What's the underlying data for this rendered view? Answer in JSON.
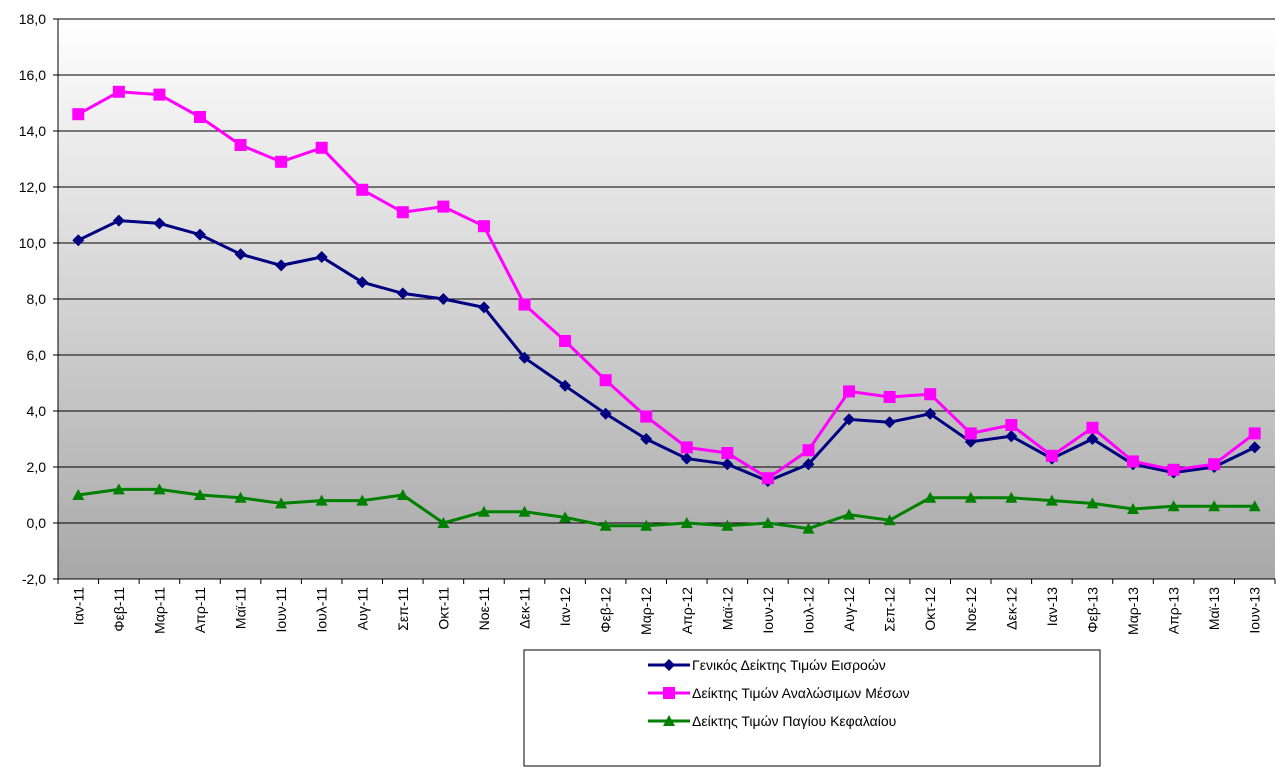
{
  "chart_data": {
    "type": "line",
    "categories": [
      "Ιαν-11",
      "Φεβ-11",
      "Μαρ-11",
      "Απρ-11",
      "Μαϊ-11",
      "Ιουν-11",
      "Ιουλ-11",
      "Αυγ-11",
      "Σεπ-11",
      "Οκτ-11",
      "Νοε-11",
      "Δεκ-11",
      "Ιαν-12",
      "Φεβ-12",
      "Μαρ-12",
      "Απρ-12",
      "Μαϊ-12",
      "Ιουν-12",
      "Ιουλ-12",
      "Αυγ-12",
      "Σεπ-12",
      "Οκτ-12",
      "Νοε-12",
      "Δεκ-12",
      "Ιαν-13",
      "Φεβ-13",
      "Μαρ-13",
      "Απρ-13",
      "Μαϊ-13",
      "Ιουν-13"
    ],
    "series": [
      {
        "name": "Γενικός Δείκτης Τιμών Εισροών",
        "color": "#000080",
        "marker": "diamond",
        "values": [
          10.1,
          10.8,
          10.7,
          10.3,
          9.6,
          9.2,
          9.5,
          8.6,
          8.2,
          8.0,
          7.7,
          5.9,
          4.9,
          3.9,
          3.0,
          2.3,
          2.1,
          1.5,
          2.1,
          3.7,
          3.6,
          3.9,
          2.9,
          3.1,
          2.3,
          3.0,
          2.1,
          1.8,
          2.0,
          2.7
        ]
      },
      {
        "name": "Δείκτης Τιμών Αναλώσιμων Μέσων",
        "color": "#ff00ff",
        "marker": "square",
        "values": [
          14.6,
          15.4,
          15.3,
          14.5,
          13.5,
          12.9,
          13.4,
          11.9,
          11.1,
          11.3,
          10.6,
          7.8,
          6.5,
          5.1,
          3.8,
          2.7,
          2.5,
          1.6,
          2.6,
          4.7,
          4.5,
          4.6,
          3.2,
          3.5,
          2.4,
          3.4,
          2.2,
          1.9,
          2.1,
          3.2
        ]
      },
      {
        "name": "Δείκτης Τιμών Παγίου Κεφαλαίου",
        "color": "#008000",
        "marker": "triangle",
        "values": [
          1.0,
          1.2,
          1.2,
          1.0,
          0.9,
          0.7,
          0.8,
          0.8,
          1.0,
          0.0,
          0.4,
          0.4,
          0.2,
          -0.1,
          -0.1,
          0.0,
          -0.1,
          0.0,
          -0.2,
          0.3,
          0.1,
          0.9,
          0.9,
          0.9,
          0.8,
          0.7,
          0.5,
          0.6,
          0.6,
          0.6
        ]
      }
    ],
    "ylim": [
      -2,
      18
    ],
    "yticks": [
      {
        "value": -2,
        "label": "-2,0"
      },
      {
        "value": 0,
        "label": "0,0"
      },
      {
        "value": 2,
        "label": "2,0"
      },
      {
        "value": 4,
        "label": "4,0"
      },
      {
        "value": 6,
        "label": "6,0"
      },
      {
        "value": 8,
        "label": "8,0"
      },
      {
        "value": 10,
        "label": "10,0"
      },
      {
        "value": 12,
        "label": "12,0"
      },
      {
        "value": 14,
        "label": "14,0"
      },
      {
        "value": 16,
        "label": "16,0"
      },
      {
        "value": 18,
        "label": "18,0"
      }
    ],
    "grid": true,
    "legend": "bottom"
  }
}
